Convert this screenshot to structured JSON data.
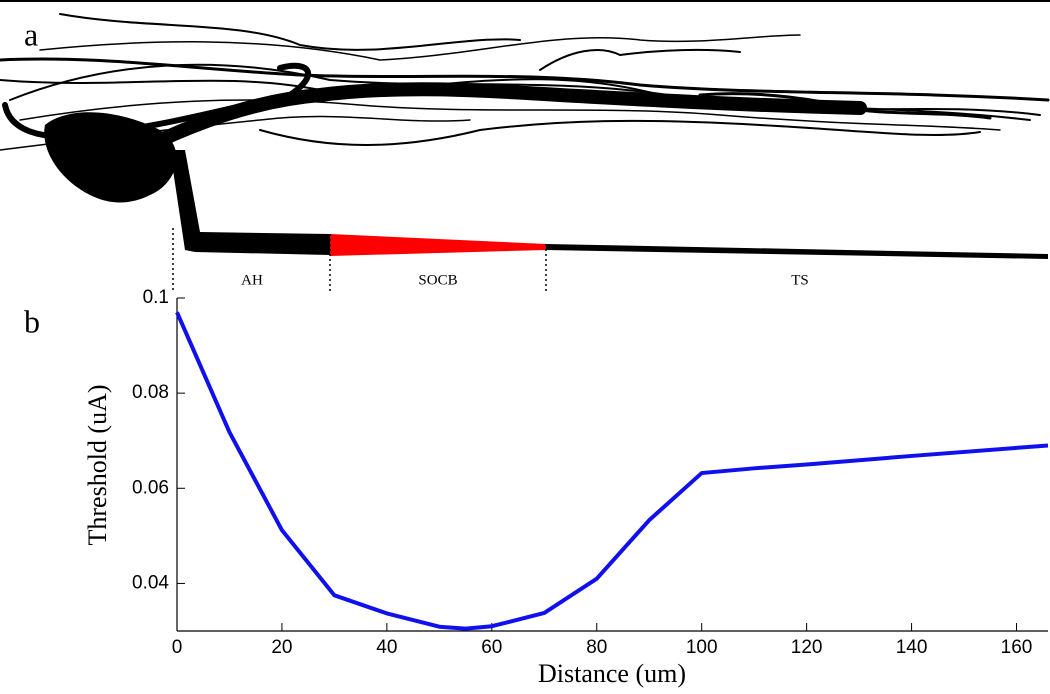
{
  "panel_a": {
    "label": "a",
    "regions": [
      "AH",
      "SOCB",
      "TS"
    ]
  },
  "chart_data": {
    "type": "line",
    "panel_label": "b",
    "x_label": "Distance (um)",
    "y_label": "Threshold (uA)",
    "x": [
      0,
      10,
      20,
      30,
      40,
      50,
      55,
      60,
      70,
      80,
      90,
      100,
      110,
      120,
      140,
      166
    ],
    "series": [
      {
        "color": "#1010ee",
        "values": [
          0.097,
          0.0718,
          0.0512,
          0.0375,
          0.0337,
          0.0309,
          0.0305,
          0.031,
          0.0338,
          0.041,
          0.0533,
          0.0632,
          0.0642,
          0.065,
          0.0668,
          0.069
        ]
      }
    ],
    "xlim": [
      0,
      166
    ],
    "ylim": [
      0.03,
      0.1
    ],
    "xticks": [
      0,
      20,
      40,
      60,
      80,
      100,
      120,
      140,
      160
    ],
    "yticks": [
      0.04,
      0.06,
      0.08,
      0.1
    ]
  }
}
